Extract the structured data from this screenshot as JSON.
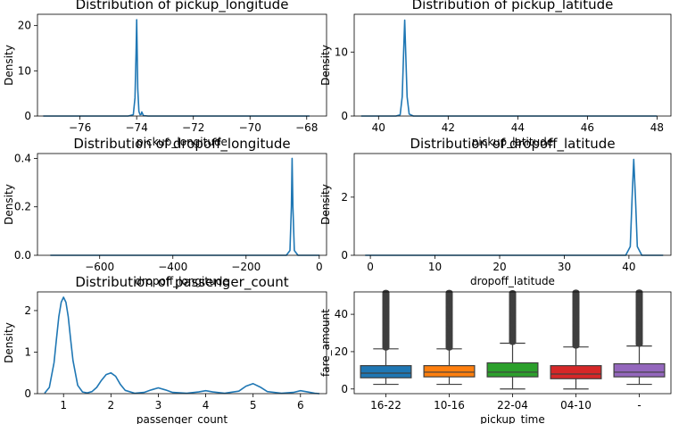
{
  "chart_data": [
    {
      "type": "line",
      "title": "Distribution of pickup_longitude",
      "xlabel": "pickup_longitude",
      "ylabel": "Density",
      "xlim": [
        -77.5,
        -67.3
      ],
      "ylim": [
        0,
        22.5
      ],
      "xticks": [
        -76,
        -74,
        -72,
        -70,
        -68
      ],
      "xtick_labels": [
        "−76",
        "−74",
        "−72",
        "−70",
        "−68"
      ],
      "yticks": [
        0,
        10,
        20
      ],
      "ytick_labels": [
        "0",
        "10",
        "20"
      ],
      "color": "#1f77b4",
      "series": [
        {
          "x": [
            -77.3,
            -75.0,
            -74.3,
            -74.12,
            -74.06,
            -74.02,
            -74.0,
            -73.98,
            -73.96,
            -73.92,
            -73.88,
            -73.84,
            -73.82,
            -73.79,
            -73.76,
            -73.6,
            -72.0,
            -70.0,
            -67.9
          ],
          "y": [
            0,
            0,
            0,
            0.3,
            4,
            14,
            21.3,
            14,
            6,
            1,
            0.3,
            0.4,
            0.9,
            0.5,
            0.1,
            0,
            0,
            0,
            0
          ]
        }
      ]
    },
    {
      "type": "line",
      "title": "Distribution of pickup_latitude",
      "xlabel": "pickup_latitude",
      "ylabel": "Density",
      "xlim": [
        39.3,
        48.4
      ],
      "ylim": [
        0,
        15.9
      ],
      "xticks": [
        40,
        42,
        44,
        46,
        48
      ],
      "xtick_labels": [
        "40",
        "42",
        "44",
        "46",
        "48"
      ],
      "yticks": [
        0,
        10
      ],
      "ytick_labels": [
        "0",
        "10"
      ],
      "color": "#1f77b4",
      "series": [
        {
          "x": [
            39.5,
            40.5,
            40.62,
            40.68,
            40.72,
            40.75,
            40.78,
            40.82,
            40.88,
            41.0,
            42.0,
            44.0,
            46.0,
            48.0
          ],
          "y": [
            0,
            0,
            0.2,
            3,
            10,
            15,
            10,
            3,
            0.3,
            0,
            0,
            0,
            0,
            0
          ]
        }
      ]
    },
    {
      "type": "line",
      "title": "Distribution of dropoff_longitude",
      "xlabel": "dropoff_longitude",
      "ylabel": "Density",
      "xlim": [
        -770,
        20
      ],
      "ylim": [
        0,
        0.42
      ],
      "xticks": [
        -600,
        -400,
        -200,
        0
      ],
      "xtick_labels": [
        "−600",
        "−400",
        "−200",
        "0"
      ],
      "yticks": [
        0.0,
        0.2,
        0.4
      ],
      "ytick_labels": [
        "0.0",
        "0.2",
        "0.4"
      ],
      "color": "#1f77b4",
      "series": [
        {
          "x": [
            -735,
            -600,
            -400,
            -200,
            -90,
            -80,
            -76,
            -74,
            -72,
            -68,
            -58,
            -40,
            -20,
            0,
            1
          ],
          "y": [
            0,
            0,
            0,
            0,
            0,
            0.02,
            0.2,
            0.4,
            0.2,
            0.02,
            0,
            0,
            0,
            0,
            0
          ]
        }
      ]
    },
    {
      "type": "line",
      "title": "Distribution of dropoff_latitude",
      "xlabel": "dropoff_latitude",
      "ylabel": "Density",
      "xlim": [
        -2.5,
        46.5
      ],
      "ylim": [
        0,
        3.5
      ],
      "xticks": [
        0,
        10,
        20,
        30,
        40
      ],
      "xtick_labels": [
        "0",
        "10",
        "20",
        "30",
        "40"
      ],
      "yticks": [
        0,
        2
      ],
      "ytick_labels": [
        "0",
        "2"
      ],
      "color": "#1f77b4",
      "series": [
        {
          "x": [
            -0.8,
            20,
            39.5,
            40.2,
            40.5,
            40.75,
            41.0,
            41.3,
            42.0,
            45.3
          ],
          "y": [
            0,
            0,
            0,
            0.3,
            2.0,
            3.3,
            2.0,
            0.3,
            0,
            0
          ]
        }
      ]
    },
    {
      "type": "line",
      "title": "Distribution of passenger_count",
      "xlabel": "passenger_count",
      "ylabel": "Density",
      "xlim": [
        0.45,
        6.55
      ],
      "ylim": [
        0,
        2.45
      ],
      "xticks": [
        1,
        2,
        3,
        4,
        5,
        6
      ],
      "xtick_labels": [
        "1",
        "2",
        "3",
        "4",
        "5",
        "6"
      ],
      "yticks": [
        0,
        1,
        2
      ],
      "ytick_labels": [
        "0",
        "1",
        "2"
      ],
      "color": "#1f77b4",
      "series": [
        {
          "x": [
            0.6,
            0.7,
            0.8,
            0.85,
            0.9,
            0.95,
            1.0,
            1.05,
            1.1,
            1.15,
            1.2,
            1.3,
            1.4,
            1.5,
            1.6,
            1.7,
            1.8,
            1.9,
            2.0,
            2.1,
            2.2,
            2.3,
            2.5,
            2.7,
            2.85,
            3.0,
            3.15,
            3.3,
            3.6,
            3.85,
            4.0,
            4.15,
            4.4,
            4.7,
            4.85,
            5.0,
            5.15,
            5.3,
            5.6,
            5.85,
            6.0,
            6.15,
            6.3,
            6.4
          ],
          "y": [
            0.01,
            0.15,
            0.75,
            1.3,
            1.85,
            2.2,
            2.32,
            2.2,
            1.85,
            1.3,
            0.8,
            0.2,
            0.04,
            0.02,
            0.05,
            0.15,
            0.32,
            0.46,
            0.5,
            0.42,
            0.22,
            0.08,
            0.01,
            0.03,
            0.09,
            0.14,
            0.09,
            0.03,
            0.01,
            0.04,
            0.07,
            0.04,
            0.01,
            0.06,
            0.18,
            0.24,
            0.16,
            0.05,
            0.01,
            0.03,
            0.07,
            0.04,
            0.01,
            0
          ]
        }
      ]
    },
    {
      "type": "box",
      "title": "",
      "xlabel": "pickup_time",
      "ylabel": "fare_amount",
      "categories": [
        "16-22",
        "10-16",
        "22-04",
        "04-10",
        "-"
      ],
      "ylim": [
        -2.5,
        52
      ],
      "yticks": [
        0,
        20,
        40
      ],
      "ytick_labels": [
        "0",
        "20",
        "40"
      ],
      "boxes": [
        {
          "category": "16-22",
          "color": "#1f77b4",
          "whislo": 2.5,
          "q1": 6,
          "med": 8.5,
          "q3": 12.5,
          "whishi": 21.5,
          "outlier_range": [
            22,
            52
          ]
        },
        {
          "category": "10-16",
          "color": "#ff7f0e",
          "whislo": 2.5,
          "q1": 6.5,
          "med": 9.0,
          "q3": 12.5,
          "whishi": 21.5,
          "outlier_range": [
            22,
            52
          ]
        },
        {
          "category": "22-04",
          "color": "#2ca02c",
          "whislo": 0.0,
          "q1": 6.5,
          "med": 9.0,
          "q3": 14.0,
          "whishi": 24.5,
          "outlier_range": [
            25,
            52
          ]
        },
        {
          "category": "04-10",
          "color": "#d62728",
          "whislo": 0.0,
          "q1": 5.5,
          "med": 8.0,
          "q3": 12.5,
          "whishi": 22.5,
          "outlier_range": [
            23,
            52
          ]
        },
        {
          "category": "-",
          "color": "#9467bd",
          "whislo": 2.5,
          "q1": 6.5,
          "med": 9.0,
          "q3": 13.5,
          "whishi": 23.0,
          "outlier_range": [
            24,
            52
          ]
        }
      ]
    }
  ]
}
